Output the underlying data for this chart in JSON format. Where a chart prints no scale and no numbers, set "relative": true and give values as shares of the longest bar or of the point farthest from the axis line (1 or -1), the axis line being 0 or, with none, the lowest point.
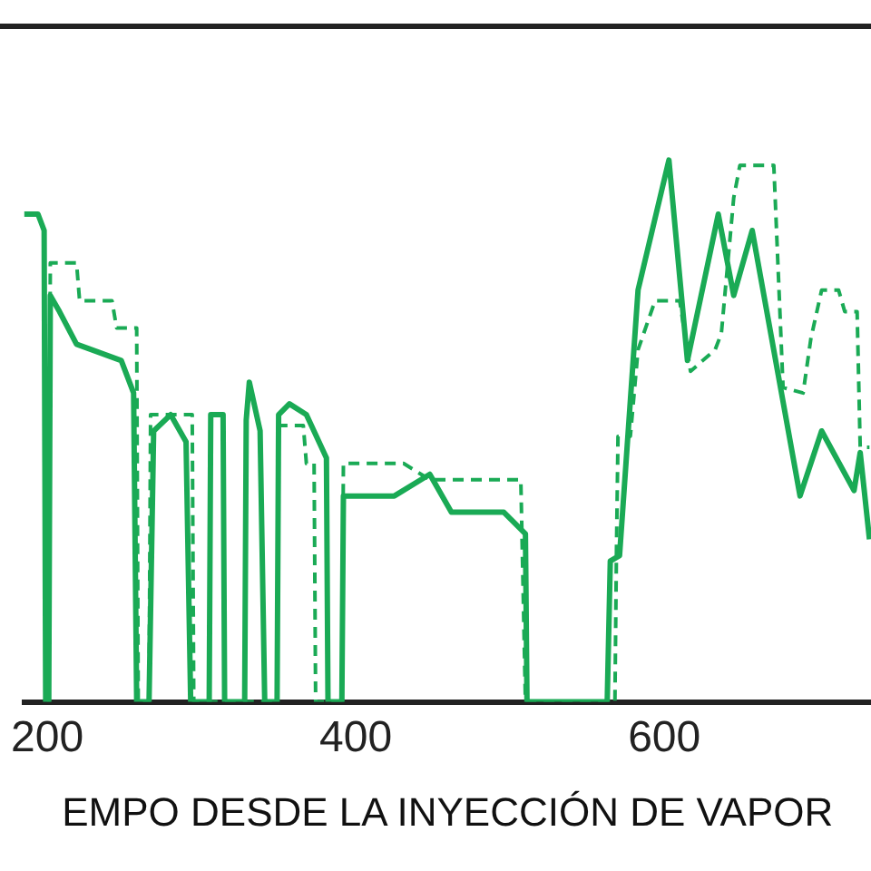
{
  "chart_data": {
    "type": "line",
    "xlabel": "EMPO DESDE LA INYECCIÓN DE VAPOR",
    "relative": true,
    "xlim": [
      185,
      734
    ],
    "xticks": [
      200,
      400,
      600
    ],
    "grid": false,
    "legend": false,
    "marker": "none",
    "series": [
      {
        "color": "#1aaa55",
        "line_style": "solid",
        "x": [
          185,
          194,
          198,
          199,
          201,
          202,
          208,
          219,
          248,
          256,
          258,
          266,
          269,
          280,
          290,
          293,
          305,
          306,
          314,
          315,
          328,
          329,
          331,
          338,
          341,
          349,
          350,
          357,
          368,
          381,
          382,
          391,
          392,
          425,
          448,
          462,
          496,
          510,
          511,
          563,
          565,
          571,
          583,
          603,
          615,
          635,
          645,
          657,
          688,
          702,
          723,
          727,
          733
        ],
        "values": [
          0.9,
          0.9,
          0.87,
          0,
          0,
          0.75,
          0.72,
          0.66,
          0.63,
          0.57,
          0,
          0,
          0.5,
          0.53,
          0.48,
          0,
          0,
          0.53,
          0.53,
          0,
          0,
          0.52,
          0.59,
          0.5,
          0,
          0,
          0.53,
          0.55,
          0.53,
          0.45,
          0,
          0,
          0.38,
          0.38,
          0.42,
          0.35,
          0.35,
          0.31,
          0,
          0,
          0.26,
          0.27,
          0.76,
          1,
          0.63,
          0.9,
          0.75,
          0.87,
          0.38,
          0.5,
          0.39,
          0.46,
          0.3
        ]
      },
      {
        "color": "#1aaa55",
        "line_style": "dashed",
        "x": [
          201,
          202,
          219,
          221,
          242,
          245,
          258,
          259,
          266,
          267,
          294,
          295,
          349,
          350,
          366,
          368,
          373,
          374,
          391,
          392,
          431,
          448,
          507,
          510,
          568,
          569,
          570,
          578,
          583,
          594,
          610,
          617,
          633,
          637,
          645,
          649,
          671,
          677,
          690,
          695,
          702,
          713,
          717,
          725,
          727,
          733
        ],
        "values": [
          0,
          0.81,
          0.81,
          0.74,
          0.74,
          0.69,
          0.69,
          0,
          0,
          0.53,
          0.53,
          0,
          0,
          0.51,
          0.51,
          0.44,
          0.44,
          0,
          0,
          0.44,
          0.44,
          0.41,
          0.41,
          0,
          0,
          0.28,
          0.49,
          0.49,
          0.65,
          0.74,
          0.74,
          0.61,
          0.65,
          0.68,
          0.93,
          0.99,
          0.99,
          0.58,
          0.57,
          0.67,
          0.76,
          0.76,
          0.72,
          0.72,
          0.47,
          0.47
        ]
      }
    ]
  }
}
